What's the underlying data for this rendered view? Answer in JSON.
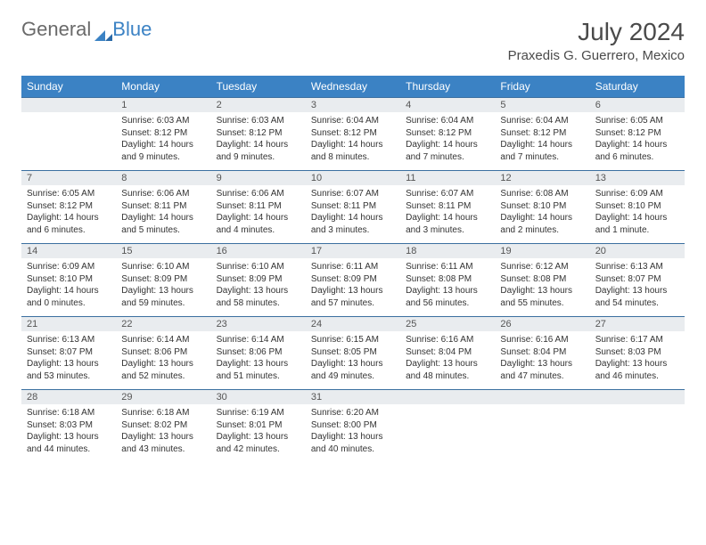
{
  "logo": {
    "text1": "General",
    "text2": "Blue"
  },
  "title": "July 2024",
  "location": "Praxedis G. Guerrero, Mexico",
  "colors": {
    "header_bg": "#3b82c4",
    "daynum_bg": "#e9ecef",
    "border": "#3b6fa0"
  },
  "weekdays": [
    "Sunday",
    "Monday",
    "Tuesday",
    "Wednesday",
    "Thursday",
    "Friday",
    "Saturday"
  ],
  "weeks": [
    [
      null,
      {
        "n": "1",
        "sr": "6:03 AM",
        "ss": "8:12 PM",
        "dl": "14 hours and 9 minutes."
      },
      {
        "n": "2",
        "sr": "6:03 AM",
        "ss": "8:12 PM",
        "dl": "14 hours and 9 minutes."
      },
      {
        "n": "3",
        "sr": "6:04 AM",
        "ss": "8:12 PM",
        "dl": "14 hours and 8 minutes."
      },
      {
        "n": "4",
        "sr": "6:04 AM",
        "ss": "8:12 PM",
        "dl": "14 hours and 7 minutes."
      },
      {
        "n": "5",
        "sr": "6:04 AM",
        "ss": "8:12 PM",
        "dl": "14 hours and 7 minutes."
      },
      {
        "n": "6",
        "sr": "6:05 AM",
        "ss": "8:12 PM",
        "dl": "14 hours and 6 minutes."
      }
    ],
    [
      {
        "n": "7",
        "sr": "6:05 AM",
        "ss": "8:12 PM",
        "dl": "14 hours and 6 minutes."
      },
      {
        "n": "8",
        "sr": "6:06 AM",
        "ss": "8:11 PM",
        "dl": "14 hours and 5 minutes."
      },
      {
        "n": "9",
        "sr": "6:06 AM",
        "ss": "8:11 PM",
        "dl": "14 hours and 4 minutes."
      },
      {
        "n": "10",
        "sr": "6:07 AM",
        "ss": "8:11 PM",
        "dl": "14 hours and 3 minutes."
      },
      {
        "n": "11",
        "sr": "6:07 AM",
        "ss": "8:11 PM",
        "dl": "14 hours and 3 minutes."
      },
      {
        "n": "12",
        "sr": "6:08 AM",
        "ss": "8:10 PM",
        "dl": "14 hours and 2 minutes."
      },
      {
        "n": "13",
        "sr": "6:09 AM",
        "ss": "8:10 PM",
        "dl": "14 hours and 1 minute."
      }
    ],
    [
      {
        "n": "14",
        "sr": "6:09 AM",
        "ss": "8:10 PM",
        "dl": "14 hours and 0 minutes."
      },
      {
        "n": "15",
        "sr": "6:10 AM",
        "ss": "8:09 PM",
        "dl": "13 hours and 59 minutes."
      },
      {
        "n": "16",
        "sr": "6:10 AM",
        "ss": "8:09 PM",
        "dl": "13 hours and 58 minutes."
      },
      {
        "n": "17",
        "sr": "6:11 AM",
        "ss": "8:09 PM",
        "dl": "13 hours and 57 minutes."
      },
      {
        "n": "18",
        "sr": "6:11 AM",
        "ss": "8:08 PM",
        "dl": "13 hours and 56 minutes."
      },
      {
        "n": "19",
        "sr": "6:12 AM",
        "ss": "8:08 PM",
        "dl": "13 hours and 55 minutes."
      },
      {
        "n": "20",
        "sr": "6:13 AM",
        "ss": "8:07 PM",
        "dl": "13 hours and 54 minutes."
      }
    ],
    [
      {
        "n": "21",
        "sr": "6:13 AM",
        "ss": "8:07 PM",
        "dl": "13 hours and 53 minutes."
      },
      {
        "n": "22",
        "sr": "6:14 AM",
        "ss": "8:06 PM",
        "dl": "13 hours and 52 minutes."
      },
      {
        "n": "23",
        "sr": "6:14 AM",
        "ss": "8:06 PM",
        "dl": "13 hours and 51 minutes."
      },
      {
        "n": "24",
        "sr": "6:15 AM",
        "ss": "8:05 PM",
        "dl": "13 hours and 49 minutes."
      },
      {
        "n": "25",
        "sr": "6:16 AM",
        "ss": "8:04 PM",
        "dl": "13 hours and 48 minutes."
      },
      {
        "n": "26",
        "sr": "6:16 AM",
        "ss": "8:04 PM",
        "dl": "13 hours and 47 minutes."
      },
      {
        "n": "27",
        "sr": "6:17 AM",
        "ss": "8:03 PM",
        "dl": "13 hours and 46 minutes."
      }
    ],
    [
      {
        "n": "28",
        "sr": "6:18 AM",
        "ss": "8:03 PM",
        "dl": "13 hours and 44 minutes."
      },
      {
        "n": "29",
        "sr": "6:18 AM",
        "ss": "8:02 PM",
        "dl": "13 hours and 43 minutes."
      },
      {
        "n": "30",
        "sr": "6:19 AM",
        "ss": "8:01 PM",
        "dl": "13 hours and 42 minutes."
      },
      {
        "n": "31",
        "sr": "6:20 AM",
        "ss": "8:00 PM",
        "dl": "13 hours and 40 minutes."
      },
      null,
      null,
      null
    ]
  ]
}
